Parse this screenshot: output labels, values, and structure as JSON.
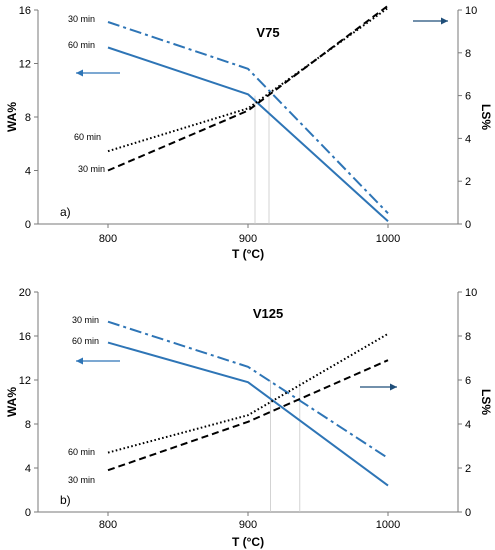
{
  "chart_data": [
    {
      "type": "line",
      "panel_label": "a)",
      "title": "V75",
      "xlabel": "T (°C)",
      "ylabel": "WA%",
      "y2label": "LS%",
      "xlim": [
        750,
        1050
      ],
      "ylim": [
        0,
        16
      ],
      "y2lim": [
        0,
        10
      ],
      "xticks": [
        "800",
        "900",
        "1000"
      ],
      "yticks": [
        "0",
        "4",
        "8",
        "12",
        "16"
      ],
      "y2ticks": [
        "0",
        "2",
        "4",
        "6",
        "8",
        "10"
      ],
      "series": [
        {
          "label": "30 min",
          "axis": "WA",
          "style": "dashdot",
          "color": "#2e75b6",
          "x": [
            800,
            900,
            1000
          ],
          "y": [
            15.1,
            11.6,
            0.8
          ]
        },
        {
          "label": "60 min",
          "axis": "WA",
          "style": "solid",
          "color": "#2e75b6",
          "x": [
            800,
            900,
            1000
          ],
          "y": [
            13.2,
            9.7,
            0.2
          ]
        },
        {
          "label": "60 min",
          "axis": "LS",
          "style": "dotted",
          "color": "#000000",
          "x": [
            800,
            900,
            1000
          ],
          "y": [
            3.4,
            5.4,
            10.1
          ]
        },
        {
          "label": "30 min",
          "axis": "LS",
          "style": "dashed",
          "color": "#000000",
          "x": [
            800,
            900,
            1000
          ],
          "y": [
            2.5,
            5.3,
            10.2
          ]
        }
      ],
      "vlines": [
        905,
        915
      ]
    },
    {
      "type": "line",
      "panel_label": "b)",
      "title": "V125",
      "xlabel": "T (°C)",
      "ylabel": "WA%",
      "y2label": "LS%",
      "xlim": [
        750,
        1050
      ],
      "ylim": [
        0,
        20
      ],
      "y2lim": [
        0,
        10
      ],
      "xticks": [
        "800",
        "900",
        "1000"
      ],
      "yticks": [
        "0",
        "4",
        "8",
        "12",
        "16",
        "20"
      ],
      "y2ticks": [
        "0",
        "2",
        "4",
        "6",
        "8",
        "10"
      ],
      "series": [
        {
          "label": "30 min",
          "axis": "WA",
          "style": "dashdot",
          "color": "#2e75b6",
          "x": [
            800,
            900,
            1000
          ],
          "y": [
            17.3,
            13.2,
            4.9
          ]
        },
        {
          "label": "60 min",
          "axis": "WA",
          "style": "solid",
          "color": "#2e75b6",
          "x": [
            800,
            900,
            1000
          ],
          "y": [
            15.4,
            11.8,
            2.4
          ]
        },
        {
          "label": "60 min",
          "axis": "LS",
          "style": "dotted",
          "color": "#000000",
          "x": [
            800,
            900,
            1000
          ],
          "y": [
            2.7,
            4.4,
            8.1
          ]
        },
        {
          "label": "30 min",
          "axis": "LS",
          "style": "dashed",
          "color": "#000000",
          "x": [
            800,
            900,
            1000
          ],
          "y": [
            1.9,
            4.1,
            6.9
          ]
        }
      ],
      "vlines": [
        916,
        937
      ]
    }
  ]
}
